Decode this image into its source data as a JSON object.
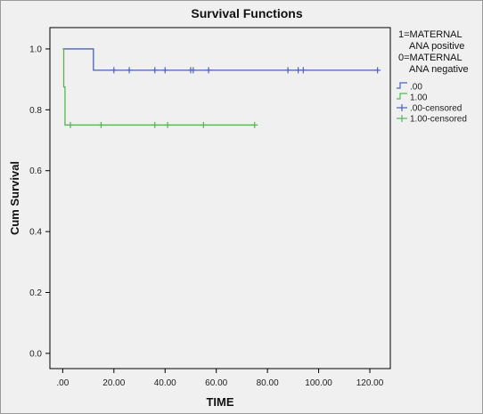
{
  "chart_data": {
    "type": "line",
    "title": "Survival Functions",
    "xlabel": "TIME",
    "ylabel": "Cum Survival",
    "xlim": [
      -5,
      128
    ],
    "ylim": [
      -0.05,
      1.07
    ],
    "x_ticks": [
      0,
      20,
      40,
      60,
      80,
      100,
      120
    ],
    "x_tick_labels": [
      ".00",
      "20.00",
      "40.00",
      "60.00",
      "80.00",
      "100.00",
      "120.00"
    ],
    "y_ticks": [
      0,
      0.2,
      0.4,
      0.6,
      0.8,
      1.0
    ],
    "y_tick_labels": [
      "0.0",
      "0.2",
      "0.4",
      "0.6",
      "0.8",
      "1.0"
    ],
    "grid": false,
    "legend_placement": "right",
    "legend_title_lines": [
      "1=MATERNAL",
      "ANA positive",
      "0=MATERNAL",
      "ANA negative"
    ],
    "series": [
      {
        "name": ".00",
        "color": "#4a62b8",
        "step_x": [
          0,
          12,
          123
        ],
        "step_y": [
          1.0,
          0.93,
          0.93
        ],
        "censored_name": ".00-censored",
        "censored_x": [
          20,
          26,
          36,
          40,
          50,
          51,
          57,
          88,
          92,
          94,
          123
        ],
        "censored_y": [
          0.93,
          0.93,
          0.93,
          0.93,
          0.93,
          0.93,
          0.93,
          0.93,
          0.93,
          0.93,
          0.93
        ]
      },
      {
        "name": "1.00",
        "color": "#5ab35a",
        "step_x": [
          0,
          0.4,
          0.9,
          75
        ],
        "step_y": [
          1.0,
          0.875,
          0.75,
          0.75
        ],
        "censored_name": "1.00-censored",
        "censored_x": [
          3,
          15,
          36,
          41,
          55,
          75
        ],
        "censored_y": [
          0.75,
          0.75,
          0.75,
          0.75,
          0.75,
          0.75
        ]
      }
    ]
  }
}
